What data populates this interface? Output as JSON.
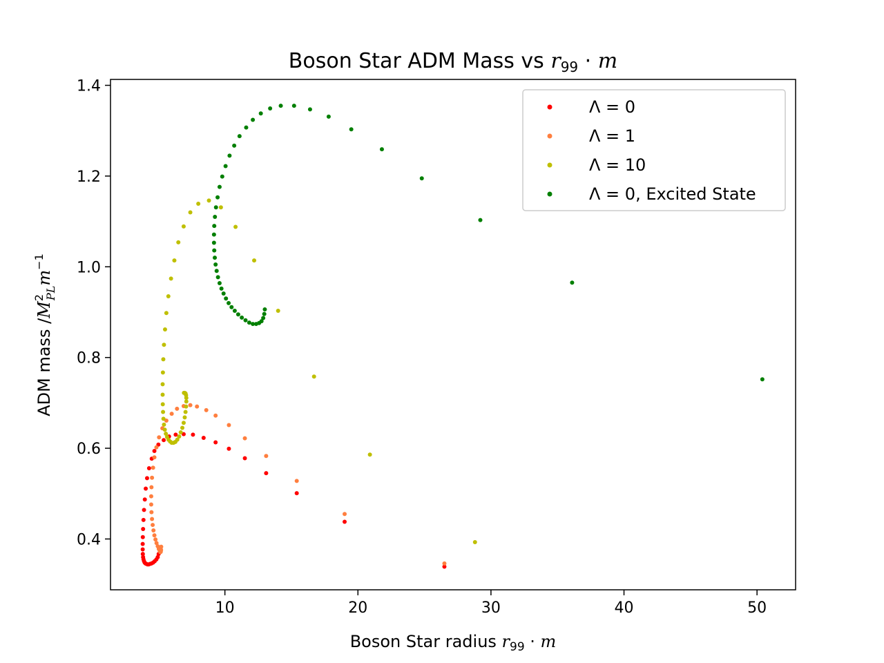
{
  "chart_data": {
    "type": "scatter",
    "title": "Boson Star ADM Mass vs r₉₉ · m",
    "title_parts": {
      "main": "Boson Star ADM Mass vs ",
      "var": "r",
      "sub": "99",
      "dot": " · ",
      "var2": "m"
    },
    "xlabel_parts": {
      "main": "Boson Star radius ",
      "var": "r",
      "sub": "99",
      "dot": " · ",
      "var2": "m"
    },
    "ylabel_parts": {
      "main": "ADM mass /",
      "var": "M",
      "sup": "2",
      "sub": "PL",
      "var2": "m",
      "sup2": "−1"
    },
    "xlim": [
      1.4,
      52.9
    ],
    "ylim": [
      0.288,
      1.413
    ],
    "xticks": [
      10,
      20,
      30,
      40,
      50
    ],
    "yticks": [
      0.4,
      0.6,
      0.8,
      1.0,
      1.2,
      1.4
    ],
    "xtick_labels": [
      "10",
      "20",
      "30",
      "40",
      "50"
    ],
    "ytick_labels": [
      "0.4",
      "0.6",
      "0.8",
      "1.0",
      "1.2",
      "1.4"
    ],
    "grid": false,
    "legend_position": "top-right",
    "series": [
      {
        "name": "Λ = 0",
        "label_parts": {
          "sym": "Λ",
          "eq": " = 0",
          "extra": ""
        },
        "color": "#ff0000",
        "x": [
          26.5,
          19.0,
          15.4,
          13.1,
          11.5,
          10.3,
          9.3,
          8.4,
          7.6,
          6.9,
          6.3,
          5.8,
          5.4,
          5.0,
          4.7,
          4.5,
          4.3,
          4.15,
          4.05,
          3.98,
          3.92,
          3.88,
          3.85,
          3.83,
          3.82,
          3.82,
          3.83,
          3.85,
          3.88,
          3.92,
          3.97,
          4.03,
          4.1,
          4.18,
          4.27,
          4.37,
          4.48,
          4.6,
          4.72,
          4.85,
          4.95,
          5.02
        ],
        "y": [
          0.339,
          0.438,
          0.501,
          0.545,
          0.578,
          0.599,
          0.613,
          0.623,
          0.63,
          0.631,
          0.63,
          0.626,
          0.618,
          0.608,
          0.594,
          0.577,
          0.556,
          0.534,
          0.511,
          0.487,
          0.464,
          0.442,
          0.422,
          0.404,
          0.389,
          0.377,
          0.367,
          0.36,
          0.355,
          0.351,
          0.348,
          0.346,
          0.345,
          0.344,
          0.344,
          0.345,
          0.346,
          0.348,
          0.351,
          0.355,
          0.36,
          0.367
        ]
      },
      {
        "name": "Λ = 1",
        "label_parts": {
          "sym": "Λ",
          "eq": " = 1",
          "extra": ""
        },
        "color": "#ff7f3f",
        "x": [
          26.5,
          19.0,
          15.4,
          13.1,
          11.5,
          10.3,
          9.3,
          8.6,
          7.9,
          7.4,
          6.9,
          6.4,
          6.0,
          5.6,
          5.3,
          5.05,
          4.85,
          4.7,
          4.6,
          4.52,
          4.48,
          4.46,
          4.46,
          4.48,
          4.52,
          4.57,
          4.63,
          4.7,
          4.78,
          4.86,
          4.95,
          5.03,
          5.1,
          5.15,
          5.18,
          5.2,
          5.21
        ],
        "y": [
          0.346,
          0.455,
          0.528,
          0.583,
          0.622,
          0.651,
          0.672,
          0.684,
          0.692,
          0.695,
          0.693,
          0.687,
          0.676,
          0.661,
          0.644,
          0.624,
          0.602,
          0.58,
          0.557,
          0.535,
          0.514,
          0.494,
          0.476,
          0.459,
          0.444,
          0.431,
          0.419,
          0.408,
          0.399,
          0.391,
          0.384,
          0.378,
          0.374,
          0.371,
          0.372,
          0.376,
          0.383
        ]
      },
      {
        "name": "Λ = 10",
        "label_parts": {
          "sym": "Λ",
          "eq": " = 10",
          "extra": ""
        },
        "color": "#bfbf00",
        "x": [
          28.8,
          20.9,
          16.7,
          14.0,
          12.2,
          10.8,
          9.7,
          8.8,
          8.0,
          7.4,
          6.9,
          6.5,
          6.2,
          5.95,
          5.75,
          5.6,
          5.5,
          5.42,
          5.37,
          5.34,
          5.32,
          5.32,
          5.33,
          5.35,
          5.38,
          5.42,
          5.48,
          5.56,
          5.65,
          5.76,
          5.88,
          6.0,
          6.14,
          6.28,
          6.42,
          6.56,
          6.68,
          6.8,
          6.9,
          6.98,
          7.04,
          7.08,
          7.1,
          7.1,
          7.08,
          7.04,
          6.98,
          6.92
        ],
        "y": [
          0.393,
          0.586,
          0.758,
          0.903,
          1.014,
          1.088,
          1.131,
          1.146,
          1.139,
          1.12,
          1.089,
          1.054,
          1.014,
          0.974,
          0.935,
          0.898,
          0.862,
          0.828,
          0.796,
          0.767,
          0.741,
          0.718,
          0.697,
          0.68,
          0.665,
          0.652,
          0.641,
          0.632,
          0.625,
          0.619,
          0.615,
          0.612,
          0.612,
          0.614,
          0.619,
          0.626,
          0.635,
          0.645,
          0.656,
          0.668,
          0.68,
          0.692,
          0.703,
          0.711,
          0.717,
          0.721,
          0.722,
          0.722
        ]
      },
      {
        "name": "Λ = 0, Excited State",
        "label_parts": {
          "sym": "Λ",
          "eq": " = 0",
          "extra": ", Excited State"
        },
        "color": "#007f00",
        "x": [
          50.4,
          36.1,
          29.2,
          24.8,
          21.8,
          19.5,
          17.8,
          16.4,
          15.2,
          14.2,
          13.4,
          12.7,
          12.1,
          11.6,
          11.1,
          10.7,
          10.35,
          10.05,
          9.8,
          9.6,
          9.45,
          9.33,
          9.25,
          9.2,
          9.18,
          9.18,
          9.2,
          9.24,
          9.3,
          9.38,
          9.48,
          9.6,
          9.74,
          9.9,
          10.08,
          10.28,
          10.5,
          10.74,
          11.0,
          11.27,
          11.55,
          11.83,
          12.1,
          12.35,
          12.57,
          12.75,
          12.88,
          12.96,
          13.0
        ],
        "y": [
          0.752,
          0.965,
          1.103,
          1.195,
          1.259,
          1.303,
          1.331,
          1.347,
          1.355,
          1.355,
          1.349,
          1.338,
          1.324,
          1.307,
          1.288,
          1.267,
          1.245,
          1.222,
          1.199,
          1.176,
          1.153,
          1.131,
          1.11,
          1.09,
          1.071,
          1.053,
          1.036,
          1.02,
          1.005,
          0.991,
          0.977,
          0.964,
          0.952,
          0.941,
          0.93,
          0.92,
          0.911,
          0.903,
          0.895,
          0.888,
          0.882,
          0.877,
          0.874,
          0.874,
          0.876,
          0.88,
          0.887,
          0.896,
          0.906
        ]
      }
    ]
  }
}
